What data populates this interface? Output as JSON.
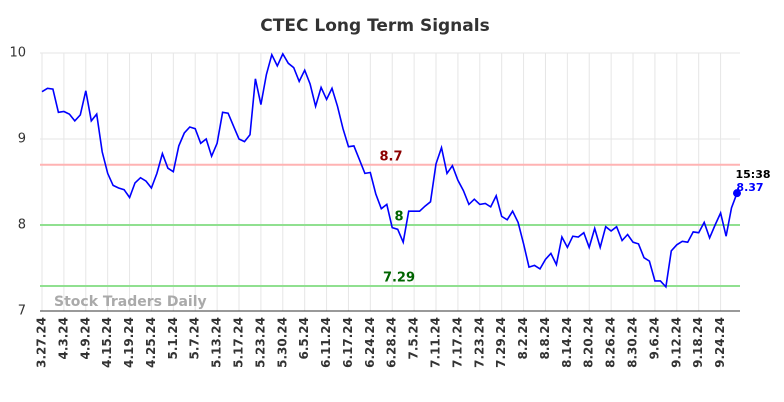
{
  "chart_data": {
    "type": "line",
    "title": "CTEC Long Term Signals",
    "categories": [
      "3.27.24",
      null,
      null,
      null,
      "4.3.24",
      null,
      null,
      null,
      "4.9.24",
      null,
      null,
      null,
      "4.15.24",
      null,
      null,
      null,
      "4.19.24",
      null,
      null,
      null,
      "4.25.24",
      null,
      null,
      null,
      "5.1.24",
      null,
      null,
      null,
      "5.7.24",
      null,
      null,
      null,
      "5.13.24",
      null,
      null,
      null,
      "5.17.24",
      null,
      null,
      null,
      "5.23.24",
      null,
      null,
      null,
      "5.30.24",
      null,
      null,
      null,
      "6.5.24",
      null,
      null,
      null,
      "6.11.24",
      null,
      null,
      null,
      "6.17.24",
      null,
      null,
      null,
      "6.24.24",
      null,
      null,
      null,
      "6.28.24",
      null,
      null,
      null,
      "7.5.24",
      null,
      null,
      null,
      "7.11.24",
      null,
      null,
      null,
      "7.17.24",
      null,
      null,
      null,
      "7.23.24",
      null,
      null,
      null,
      "7.29.24",
      null,
      null,
      null,
      "8.2.24",
      null,
      null,
      null,
      "8.8.24",
      null,
      null,
      null,
      "8.14.24",
      null,
      null,
      null,
      "8.20.24",
      null,
      null,
      null,
      "8.26.24",
      null,
      null,
      null,
      "8.30.24",
      null,
      null,
      null,
      "9.6.24",
      null,
      null,
      null,
      "9.12.24",
      null,
      null,
      null,
      "9.18.24",
      null,
      null,
      null,
      "9.24.24",
      null,
      null,
      null
    ],
    "values": [
      9.55,
      9.59,
      9.58,
      9.31,
      9.32,
      9.29,
      9.21,
      9.28,
      9.56,
      9.21,
      9.29,
      8.85,
      8.6,
      8.46,
      8.43,
      8.41,
      8.32,
      8.49,
      8.55,
      8.51,
      8.43,
      8.6,
      8.83,
      8.66,
      8.62,
      8.92,
      9.07,
      9.14,
      9.12,
      8.95,
      9.0,
      8.8,
      8.95,
      9.31,
      9.3,
      9.15,
      9.0,
      8.97,
      9.05,
      9.7,
      9.4,
      9.75,
      9.98,
      9.85,
      9.99,
      9.88,
      9.83,
      9.67,
      9.8,
      9.64,
      9.38,
      9.6,
      9.46,
      9.59,
      9.38,
      9.12,
      8.91,
      8.92,
      8.76,
      8.6,
      8.61,
      8.36,
      8.19,
      8.24,
      7.97,
      7.95,
      7.8,
      8.16,
      8.16,
      8.16,
      8.22,
      8.27,
      8.71,
      8.9,
      8.6,
      8.69,
      8.52,
      8.4,
      8.24,
      8.3,
      8.24,
      8.25,
      8.21,
      8.34,
      8.1,
      8.06,
      8.16,
      8.03,
      7.78,
      7.51,
      7.53,
      7.49,
      7.6,
      7.67,
      7.54,
      7.86,
      7.74,
      7.87,
      7.86,
      7.91,
      7.74,
      7.96,
      7.74,
      7.98,
      7.93,
      7.98,
      7.82,
      7.89,
      7.8,
      7.78,
      7.62,
      7.58,
      7.35,
      7.35,
      7.28,
      7.7,
      7.77,
      7.81,
      7.8,
      7.92,
      7.91,
      8.03,
      7.85,
      8.0,
      8.14,
      7.87,
      8.2,
      8.37
    ],
    "color": "#0000ff",
    "ylim": [
      7,
      10
    ],
    "yticks": [
      7,
      8,
      9,
      10
    ],
    "grid": true,
    "reference_lines": [
      {
        "value": 8.7,
        "color": "#ffb3b3",
        "label_color": "#8b0000"
      },
      {
        "value": 8,
        "color": "#90e090",
        "label_color": "#006400"
      },
      {
        "value": 7.29,
        "color": "#90e090",
        "label_color": "#006400"
      }
    ],
    "last_time": "15:38",
    "watermark": "Stock Traders Daily"
  }
}
